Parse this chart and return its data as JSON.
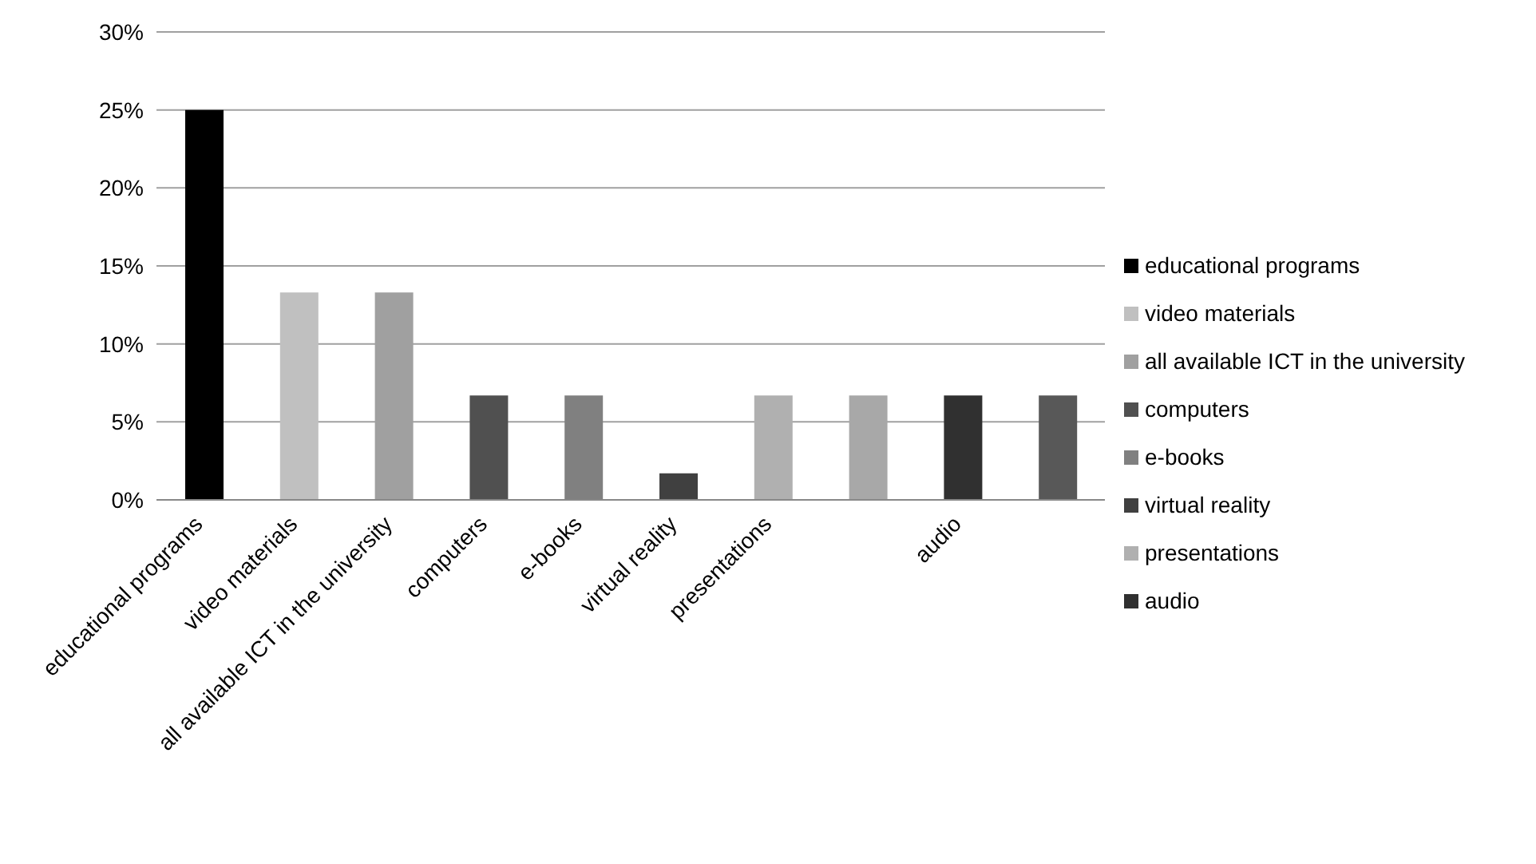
{
  "chart_data": {
    "type": "bar",
    "stacked": true,
    "categories": [
      "educational programs",
      "video materials",
      "all available ICT in the university",
      "computers",
      "e-books",
      "virtual reality",
      "presentations",
      null,
      "audio",
      null
    ],
    "series": [
      {
        "name": "educational programs",
        "color": "#000000",
        "values": [
          25,
          null,
          null,
          null,
          null,
          null,
          null,
          null,
          null,
          null
        ]
      },
      {
        "name": "video materials",
        "color": "#c0c0c0",
        "values": [
          null,
          13.3,
          null,
          null,
          null,
          null,
          null,
          null,
          null,
          null
        ]
      },
      {
        "name": "all available ICT in the university",
        "color": "#a0a0a0",
        "values": [
          null,
          null,
          13.3,
          null,
          null,
          null,
          null,
          null,
          null,
          null
        ]
      },
      {
        "name": "computers",
        "color": "#505050",
        "values": [
          null,
          null,
          null,
          6.7,
          null,
          null,
          null,
          null,
          null,
          null
        ]
      },
      {
        "name": "e-books",
        "color": "#808080",
        "values": [
          null,
          null,
          null,
          null,
          6.7,
          null,
          null,
          null,
          null,
          null
        ]
      },
      {
        "name": "virtual reality",
        "color": "#404040",
        "values": [
          null,
          null,
          null,
          null,
          null,
          1.7,
          null,
          null,
          null,
          null
        ]
      },
      {
        "name": "presentations",
        "color": "#b0b0b0",
        "values": [
          null,
          null,
          null,
          null,
          null,
          null,
          6.7,
          null,
          null,
          null
        ]
      },
      {
        "color": "#a8a8a8",
        "values": [
          null,
          null,
          null,
          null,
          null,
          null,
          null,
          6.7,
          null,
          null
        ]
      },
      {
        "name": "audio",
        "color": "#303030",
        "values": [
          null,
          null,
          null,
          null,
          null,
          null,
          null,
          null,
          6.7,
          null
        ]
      },
      {
        "color": "#585858",
        "values": [
          null,
          null,
          null,
          null,
          null,
          null,
          null,
          null,
          null,
          6.7
        ]
      }
    ],
    "ylim": [
      0,
      30
    ],
    "yticks": [
      {
        "value": 0,
        "label": "0%"
      },
      {
        "value": 5,
        "label": "5%"
      },
      {
        "value": 10,
        "label": "10%"
      },
      {
        "value": 15,
        "label": "15%"
      },
      {
        "value": 20,
        "label": "20%"
      },
      {
        "value": 25,
        "label": "25%"
      },
      {
        "value": 30,
        "label": "30%"
      }
    ],
    "grid": "y",
    "legend": "right"
  }
}
